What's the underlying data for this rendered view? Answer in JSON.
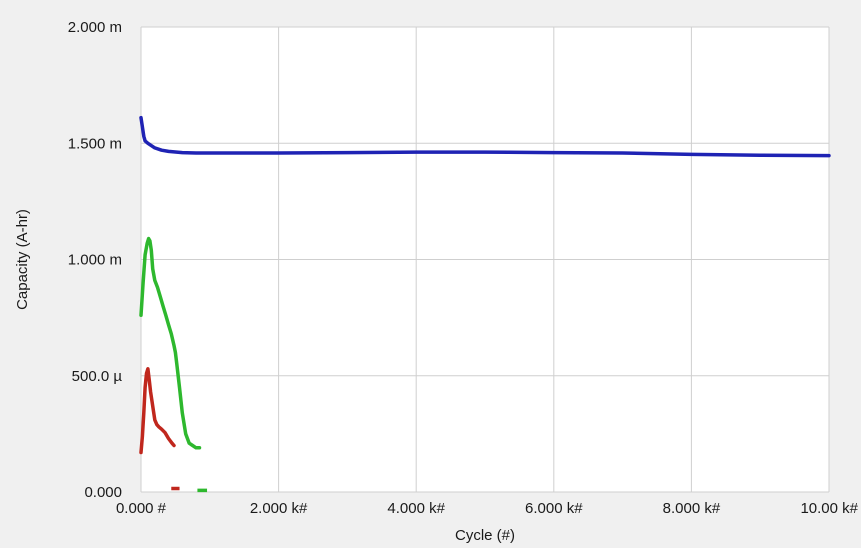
{
  "chart_data": {
    "type": "line",
    "title": "",
    "xlabel": "Cycle (#)",
    "ylabel": "Capacity (A-hr)",
    "xlim": [
      0,
      10000
    ],
    "ylim": [
      0,
      0.002
    ],
    "x_ticks": [
      0,
      2000,
      4000,
      6000,
      8000,
      10000
    ],
    "x_tick_labels": [
      "0.000 #",
      "2.000 k#",
      "4.000 k#",
      "6.000 k#",
      "8.000 k#",
      "10.00 k#"
    ],
    "y_ticks": [
      0,
      0.0005,
      0.001,
      0.0015,
      0.002
    ],
    "y_tick_labels": [
      "0.000",
      "500.0 µ",
      "1.000 m",
      "1.500 m",
      "2.000 m"
    ],
    "grid": true,
    "legend": "none",
    "colors": {
      "page_background": "#f0f0f0",
      "plot_background": "#ffffff",
      "grid": "#cfcfcf"
    },
    "series": [
      {
        "color": "#1f23b4",
        "x": [
          0,
          20,
          40,
          60,
          100,
          200,
          300,
          400,
          600,
          800,
          1000,
          2000,
          3000,
          4000,
          5000,
          6000,
          7000,
          8000,
          9000,
          10000
        ],
        "y": [
          0.00161,
          0.00157,
          0.00153,
          0.00151,
          0.0015,
          0.00148,
          0.00147,
          0.001465,
          0.00146,
          0.001458,
          0.001458,
          0.001458,
          0.00146,
          0.001462,
          0.001462,
          0.00146,
          0.001458,
          0.001452,
          0.001448,
          0.001447
        ]
      },
      {
        "color": "#2eb82e",
        "x": [
          0,
          30,
          60,
          90,
          110,
          130,
          150,
          170,
          200,
          240,
          280,
          320,
          360,
          400,
          440,
          480,
          500,
          520,
          560,
          600,
          650,
          700,
          750,
          800,
          850
        ],
        "y": [
          0.00076,
          0.0009,
          0.00102,
          0.00107,
          0.00109,
          0.00108,
          0.00104,
          0.00096,
          0.00091,
          0.00088,
          0.00084,
          0.0008,
          0.00076,
          0.00072,
          0.00068,
          0.00063,
          0.0006,
          0.00055,
          0.00045,
          0.00034,
          0.00025,
          0.00021,
          0.0002,
          0.00019,
          0.00019
        ]
      },
      {
        "color": "#c0271d",
        "x": [
          0,
          20,
          40,
          60,
          80,
          100,
          120,
          140,
          160,
          180,
          200,
          230,
          260,
          300,
          350,
          400,
          450,
          480
        ],
        "y": [
          0.00017,
          0.00024,
          0.00034,
          0.00045,
          0.00051,
          0.00053,
          0.00048,
          0.00043,
          0.00039,
          0.00035,
          0.00031,
          0.00029,
          0.00028,
          0.00027,
          0.000255,
          0.00023,
          0.00021,
          0.0002
        ]
      }
    ],
    "segments": [
      {
        "color": "#c0271d",
        "x": [
          440,
          560
        ],
        "y": [
          1.5e-05,
          1.5e-05
        ]
      },
      {
        "color": "#2eb82e",
        "x": [
          820,
          960
        ],
        "y": [
          7e-06,
          7e-06
        ]
      }
    ]
  }
}
